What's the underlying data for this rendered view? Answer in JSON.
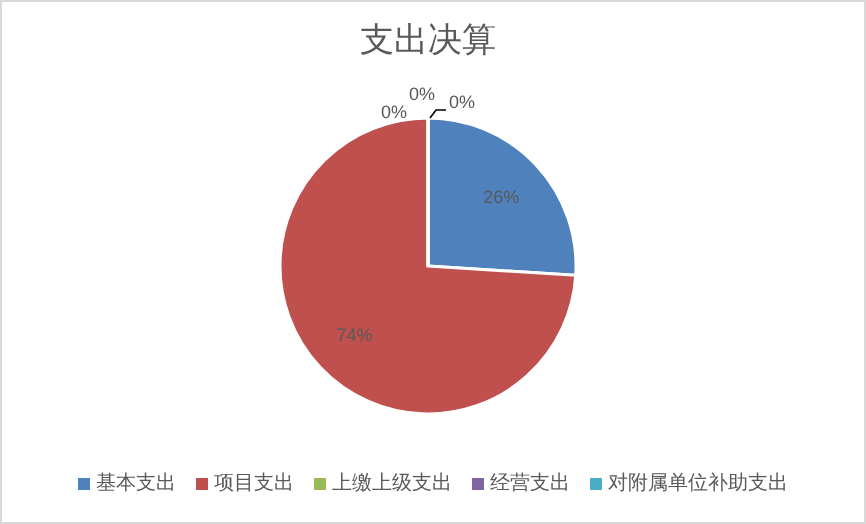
{
  "chart_data": {
    "type": "pie",
    "title": "支出决算",
    "categories": [
      "基本支出",
      "项目支出",
      "上缴上级支出",
      "经营支出",
      "对附属单位补助支出"
    ],
    "values": [
      26,
      74,
      0,
      0,
      0
    ],
    "colors": [
      "#4f81bd",
      "#c0504d",
      "#9bbb59",
      "#8064a2",
      "#4bacc6"
    ],
    "value_labels": [
      "26%",
      "74%",
      "0%",
      "0%",
      "0%"
    ],
    "legend": "bottom"
  }
}
